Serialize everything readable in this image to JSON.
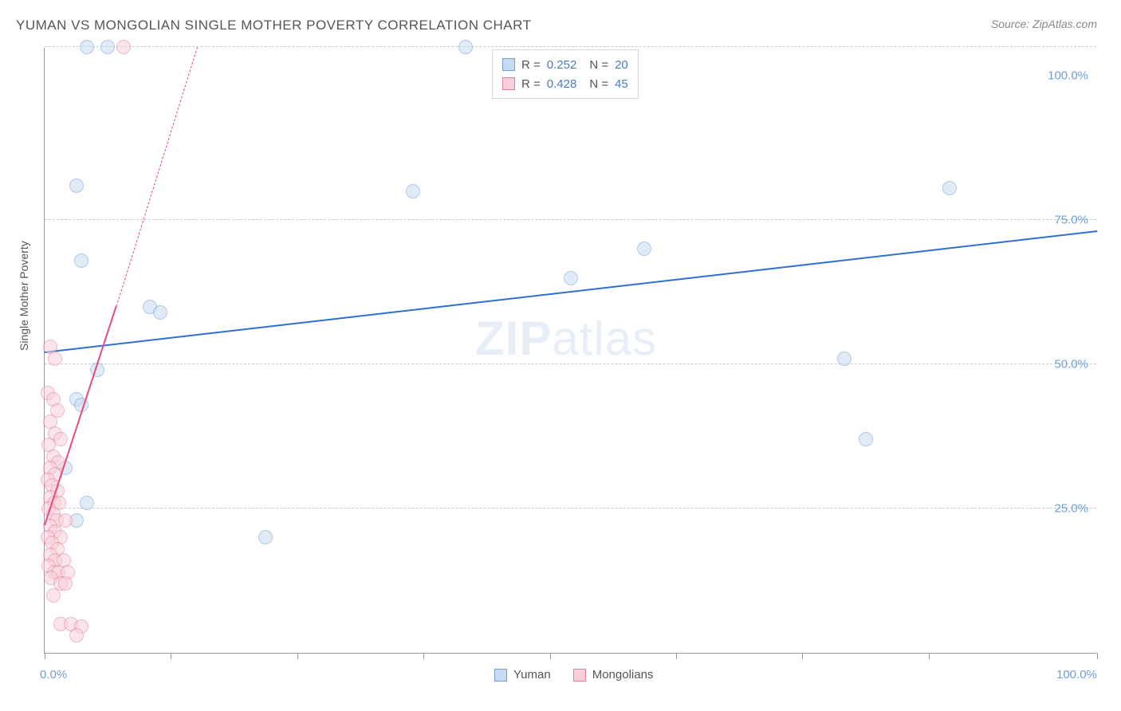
{
  "title": "YUMAN VS MONGOLIAN SINGLE MOTHER POVERTY CORRELATION CHART",
  "source": "Source: ZipAtlas.com",
  "ylabel": "Single Mother Poverty",
  "watermark_a": "ZIP",
  "watermark_b": "atlas",
  "chart": {
    "type": "scatter",
    "background_color": "#ffffff",
    "grid_color": "#cccccc",
    "axis_color": "#999999",
    "text_color": "#555555",
    "tick_label_color": "#6f9ed8",
    "xlim": [
      0,
      100
    ],
    "ylim": [
      0,
      105
    ],
    "x_tick_positions": [
      0,
      12,
      24,
      36,
      48,
      60,
      72,
      84,
      100
    ],
    "y_gridlines": [
      25,
      50,
      75,
      105
    ],
    "y_tick_labels": [
      {
        "pos": 25,
        "text": "25.0%"
      },
      {
        "pos": 50,
        "text": "50.0%"
      },
      {
        "pos": 75,
        "text": "75.0%"
      },
      {
        "pos": 100,
        "text": "100.0%"
      }
    ],
    "x_tick_labels": [
      {
        "pos": 0,
        "text": "0.0%"
      },
      {
        "pos": 100,
        "text": "100.0%"
      }
    ],
    "point_radius": 9,
    "point_opacity": 0.55,
    "series": [
      {
        "name": "Yuman",
        "fill": "#c9dbf0",
        "stroke": "#6f9ed8",
        "R": "0.252",
        "N": "20",
        "trend": {
          "x1": 0,
          "y1": 52,
          "x2": 100,
          "y2": 73,
          "color": "#2e6fd1",
          "width": 2.5,
          "dash": false
        },
        "points": [
          {
            "x": 4,
            "y": 105
          },
          {
            "x": 6,
            "y": 105
          },
          {
            "x": 40,
            "y": 105
          },
          {
            "x": 3,
            "y": 81
          },
          {
            "x": 35,
            "y": 80
          },
          {
            "x": 86,
            "y": 80.5
          },
          {
            "x": 3.5,
            "y": 68
          },
          {
            "x": 57,
            "y": 70
          },
          {
            "x": 50,
            "y": 65
          },
          {
            "x": 10,
            "y": 60
          },
          {
            "x": 11,
            "y": 59
          },
          {
            "x": 76,
            "y": 51
          },
          {
            "x": 5,
            "y": 49
          },
          {
            "x": 3,
            "y": 44
          },
          {
            "x": 3.5,
            "y": 43
          },
          {
            "x": 78,
            "y": 37
          },
          {
            "x": 2,
            "y": 32
          },
          {
            "x": 4,
            "y": 26
          },
          {
            "x": 3,
            "y": 23
          },
          {
            "x": 21,
            "y": 20
          }
        ]
      },
      {
        "name": "Mongolians",
        "fill": "#f7d0da",
        "stroke": "#e57f9d",
        "R": "0.428",
        "N": "45",
        "trend": {
          "x1": 0,
          "y1": 22,
          "x2": 6.8,
          "y2": 60,
          "color": "#e84b7a",
          "width": 2,
          "dash": false
        },
        "trend_ext": {
          "x1": 6.8,
          "y1": 60,
          "x2": 14.5,
          "y2": 105,
          "color": "#e84b7a",
          "width": 1,
          "dash": true
        },
        "points": [
          {
            "x": 7.5,
            "y": 105
          },
          {
            "x": 0.5,
            "y": 53
          },
          {
            "x": 1,
            "y": 51
          },
          {
            "x": 0.3,
            "y": 45
          },
          {
            "x": 0.8,
            "y": 44
          },
          {
            "x": 1.2,
            "y": 42
          },
          {
            "x": 0.5,
            "y": 40
          },
          {
            "x": 1,
            "y": 38
          },
          {
            "x": 1.5,
            "y": 37
          },
          {
            "x": 0.4,
            "y": 36
          },
          {
            "x": 0.8,
            "y": 34
          },
          {
            "x": 1.3,
            "y": 33
          },
          {
            "x": 0.5,
            "y": 32
          },
          {
            "x": 1,
            "y": 31
          },
          {
            "x": 0.3,
            "y": 30
          },
          {
            "x": 0.7,
            "y": 29
          },
          {
            "x": 1.2,
            "y": 28
          },
          {
            "x": 0.5,
            "y": 27
          },
          {
            "x": 0.9,
            "y": 26
          },
          {
            "x": 1.4,
            "y": 26
          },
          {
            "x": 0.4,
            "y": 25
          },
          {
            "x": 0.8,
            "y": 24
          },
          {
            "x": 1.1,
            "y": 23
          },
          {
            "x": 2,
            "y": 23
          },
          {
            "x": 0.5,
            "y": 22
          },
          {
            "x": 1,
            "y": 21
          },
          {
            "x": 0.3,
            "y": 20
          },
          {
            "x": 1.5,
            "y": 20
          },
          {
            "x": 0.7,
            "y": 19
          },
          {
            "x": 1.2,
            "y": 18
          },
          {
            "x": 0.5,
            "y": 17
          },
          {
            "x": 1,
            "y": 16
          },
          {
            "x": 1.8,
            "y": 16
          },
          {
            "x": 0.4,
            "y": 15
          },
          {
            "x": 0.9,
            "y": 14
          },
          {
            "x": 1.3,
            "y": 14
          },
          {
            "x": 2.2,
            "y": 14
          },
          {
            "x": 0.6,
            "y": 13
          },
          {
            "x": 1.5,
            "y": 12
          },
          {
            "x": 2,
            "y": 12
          },
          {
            "x": 0.8,
            "y": 10
          },
          {
            "x": 1.5,
            "y": 5
          },
          {
            "x": 2.5,
            "y": 5
          },
          {
            "x": 3.5,
            "y": 4.5
          },
          {
            "x": 3,
            "y": 3
          }
        ]
      }
    ]
  },
  "legend_top": {
    "R_label": "R =",
    "N_label": "N ="
  },
  "legend_bottom": {
    "series1": "Yuman",
    "series2": "Mongolians"
  }
}
